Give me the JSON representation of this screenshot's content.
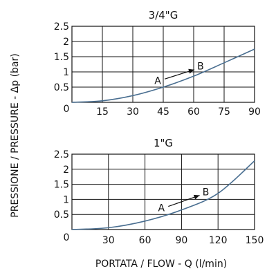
{
  "figure": {
    "ylabel": "PRESSIONE / PRESSURE - Δp (bar)",
    "xlabel": "PORTATA / FLOW - Q (l/min)",
    "curve_color": "#4a6f91"
  },
  "chart_data": [
    {
      "type": "line",
      "title": "3/4\"G",
      "xlim": [
        0,
        90
      ],
      "ylim": [
        0,
        2.5
      ],
      "x_ticks": [
        15,
        30,
        45,
        60,
        75,
        90
      ],
      "x_tick_labels": [
        "15",
        "30",
        "45",
        "60",
        "75",
        "90"
      ],
      "y_ticks": [
        0.5,
        1,
        1.5,
        2,
        2.5
      ],
      "y_tick_labels": [
        "0.5",
        "1",
        "1.5",
        "2",
        "2.5"
      ],
      "origin_label": "0",
      "grid": true,
      "series": [
        {
          "x": [
            0,
            15,
            30,
            45,
            60,
            75,
            90
          ],
          "y": [
            0,
            0.05,
            0.22,
            0.5,
            0.86,
            1.3,
            1.75
          ]
        }
      ],
      "annotation": {
        "from": "A",
        "to": "B",
        "from_pos": [
          45,
          0.72
        ],
        "to_pos": [
          61,
          1.12
        ]
      }
    },
    {
      "type": "line",
      "title": "1\"G",
      "xlim": [
        0,
        150
      ],
      "ylim": [
        0,
        2.5
      ],
      "x_ticks": [
        30,
        60,
        90,
        120,
        150
      ],
      "x_tick_labels": [
        "30",
        "60",
        "90",
        "120",
        "150"
      ],
      "y_ticks": [
        0.5,
        1,
        1.5,
        2,
        2.5
      ],
      "y_tick_labels": [
        "0.5",
        "1",
        "1.5",
        "2",
        "2.5"
      ],
      "origin_label": "0",
      "grid": true,
      "series": [
        {
          "x": [
            0,
            30,
            60,
            90,
            120,
            150
          ],
          "y": [
            0,
            0.06,
            0.28,
            0.65,
            1.2,
            2.28
          ]
        }
      ],
      "annotation": {
        "from": "A",
        "to": "B",
        "from_pos": [
          78,
          0.72
        ],
        "to_pos": [
          106,
          1.18
        ]
      }
    }
  ]
}
